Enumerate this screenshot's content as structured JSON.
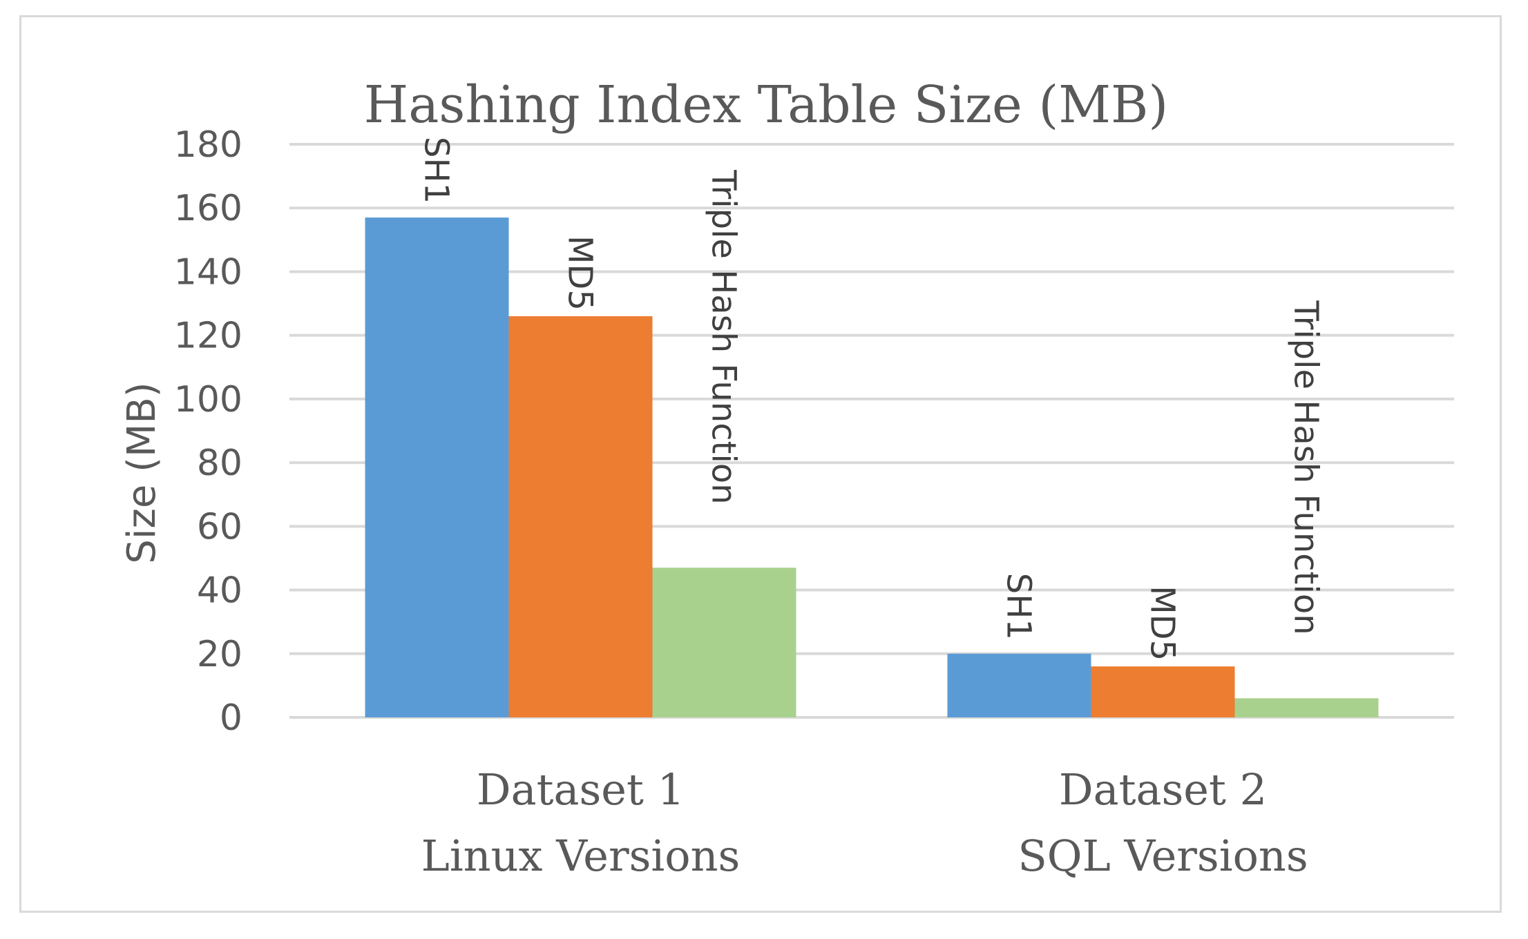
{
  "chart_data": {
    "type": "bar",
    "title": "Hashing Index Table Size (MB)",
    "ylabel": "Size  (MB)",
    "xlabel": "",
    "ylim": [
      0,
      180
    ],
    "yticks": [
      0,
      20,
      40,
      60,
      80,
      100,
      120,
      140,
      160,
      180
    ],
    "grid": true,
    "legend": "none",
    "categories": [
      [
        "Dataset 1",
        "Linux Versions"
      ],
      [
        "Dataset 2",
        "SQL Versions"
      ]
    ],
    "series": [
      {
        "name": "SH1",
        "color": "#5b9bd5",
        "values": [
          157,
          20
        ]
      },
      {
        "name": "MD5",
        "color": "#ed7d31",
        "values": [
          126,
          16
        ]
      },
      {
        "name": "Triple Hash Function",
        "color": "#a9d18e",
        "values": [
          47,
          6
        ]
      }
    ]
  }
}
